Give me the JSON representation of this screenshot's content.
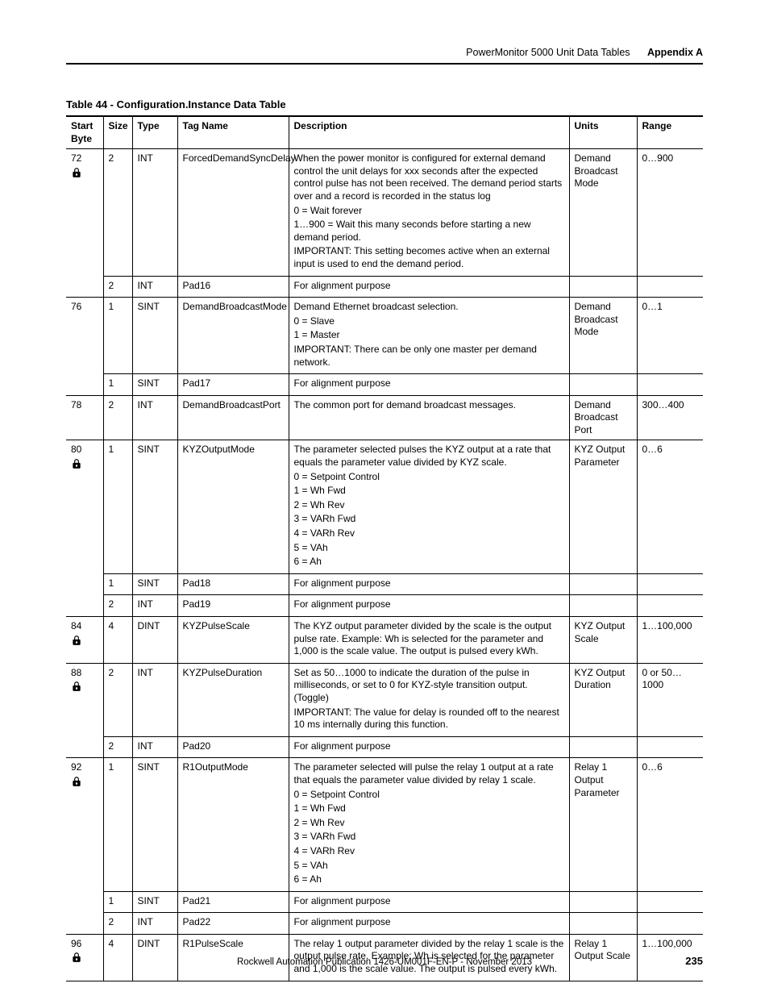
{
  "header": {
    "doc_section": "PowerMonitor 5000 Unit Data Tables",
    "appendix": "Appendix A"
  },
  "caption": "Table 44 - Configuration.Instance Data Table",
  "columns": [
    "Start Byte",
    "Size",
    "Type",
    "Tag Name",
    "Description",
    "Units",
    "Range"
  ],
  "rows": [
    {
      "start": "72",
      "lock": true,
      "size": "2",
      "type": "INT",
      "tag": "ForcedDemandSyncDelay",
      "desc": [
        "When the power monitor is configured for external demand control the unit delays for xxx seconds after the expected control pulse has not been received. The demand period starts over and a record is recorded in the status log",
        "0 = Wait forever",
        "1…900 = Wait this many seconds before starting a new demand period.",
        "IMPORTANT: This setting becomes active when an external input is used to end the demand period."
      ],
      "units": "Demand Broadcast Mode",
      "range": "0…900",
      "rowspan_start": true
    },
    {
      "start": "",
      "lock": false,
      "size": "2",
      "type": "INT",
      "tag": "Pad16",
      "desc": [
        "For alignment purpose"
      ],
      "units": "",
      "range": "",
      "rowspan_cont": true
    },
    {
      "start": "76",
      "lock": false,
      "size": "1",
      "type": "SINT",
      "tag": "DemandBroadcastMode",
      "desc": [
        "Demand Ethernet broadcast selection.",
        "0 = Slave",
        "1 = Master",
        "IMPORTANT:  There can be only one master per demand network."
      ],
      "units": "Demand Broadcast Mode",
      "range": "0…1",
      "rowspan_start": true
    },
    {
      "start": "",
      "lock": false,
      "size": "1",
      "type": "SINT",
      "tag": "Pad17",
      "desc": [
        "For alignment purpose"
      ],
      "units": "",
      "range": "",
      "rowspan_cont": true
    },
    {
      "start": "78",
      "lock": false,
      "size": "2",
      "type": "INT",
      "tag": "DemandBroadcastPort",
      "desc": [
        "The common port for demand broadcast messages."
      ],
      "units": "Demand Broadcast Port",
      "range": "300…400"
    },
    {
      "start": "80",
      "lock": true,
      "size": "1",
      "type": "SINT",
      "tag": "KYZOutputMode",
      "desc": [
        "The parameter selected pulses the KYZ output at a rate that equals the parameter value divided by KYZ scale.",
        "0 = Setpoint Control",
        "1 = Wh Fwd",
        "2 = Wh Rev",
        "3 = VARh Fwd",
        "4 = VARh Rev",
        "5 = VAh",
        "6 = Ah"
      ],
      "units": "KYZ Output Parameter",
      "range": "0…6",
      "rowspan_start": true
    },
    {
      "start": "",
      "lock": false,
      "size": "1",
      "type": "SINT",
      "tag": "Pad18",
      "desc": [
        "For alignment purpose"
      ],
      "units": "",
      "range": "",
      "rowspan_cont": true,
      "rowspan_mid": true
    },
    {
      "start": "",
      "lock": false,
      "size": "2",
      "type": "INT",
      "tag": "Pad19",
      "desc": [
        "For alignment purpose"
      ],
      "units": "",
      "range": "",
      "rowspan_cont": true
    },
    {
      "start": "84",
      "lock": true,
      "size": "4",
      "type": "DINT",
      "tag": "KYZPulseScale",
      "desc": [
        "The KYZ output parameter divided by the scale is the output pulse rate.  Example:  Wh is selected for the parameter and 1,000 is the scale value.  The output is pulsed every kWh."
      ],
      "units": "KYZ Output Scale",
      "range": "1…100,000"
    },
    {
      "start": "88",
      "lock": true,
      "size": "2",
      "type": "INT",
      "tag": "KYZPulseDuration",
      "desc": [
        "Set as 50…1000 to indicate the duration of the pulse in milliseconds, or set to 0 for KYZ-style transition output. (Toggle)",
        "IMPORTANT: The value for delay is rounded off to the nearest 10 ms internally during this function."
      ],
      "units": "KYZ Output Duration",
      "range": "0 or 50…1000",
      "rowspan_start": true
    },
    {
      "start": "",
      "lock": false,
      "size": "2",
      "type": "INT",
      "tag": "Pad20",
      "desc": [
        "For alignment purpose"
      ],
      "units": "",
      "range": "",
      "rowspan_cont": true
    },
    {
      "start": "92",
      "lock": true,
      "size": "1",
      "type": "SINT",
      "tag": "R1OutputMode",
      "desc": [
        "The parameter selected will pulse the relay 1 output at a rate that equals the parameter value divided by relay 1 scale.",
        "0 = Setpoint Control",
        "1 = Wh Fwd",
        "2 = Wh Rev",
        "3 = VARh Fwd",
        "4 = VARh Rev",
        "5 = VAh",
        "6 = Ah"
      ],
      "units": "Relay 1 Output Parameter",
      "range": "0…6",
      "rowspan_start": true
    },
    {
      "start": "",
      "lock": false,
      "size": "1",
      "type": "SINT",
      "tag": "Pad21",
      "desc": [
        "For alignment purpose"
      ],
      "units": "",
      "range": "",
      "rowspan_cont": true,
      "rowspan_mid": true
    },
    {
      "start": "",
      "lock": false,
      "size": "2",
      "type": "INT",
      "tag": "Pad22",
      "desc": [
        "For alignment purpose"
      ],
      "units": "",
      "range": "",
      "rowspan_cont": true
    },
    {
      "start": "96",
      "lock": true,
      "size": "4",
      "type": "DINT",
      "tag": "R1PulseScale",
      "desc": [
        "The relay 1 output parameter divided by the relay 1 scale is the output pulse rate. Example: Wh is selected for the parameter and 1,000 is the scale value. The output is pulsed every kWh."
      ],
      "units": "Relay 1 Output Scale",
      "range": "1…100,000"
    }
  ],
  "footer": {
    "pub": "Rockwell Automation Publication 1426-UM001F-EN-P - November 2013",
    "page": "235"
  },
  "style": {
    "text_color": "#000000",
    "bg_color": "#ffffff",
    "border_color": "#000000",
    "font_family": "Myriad Pro, Segoe UI, Arial, sans-serif",
    "caption_fontsize": 13,
    "header_fontsize": 12.5,
    "body_fontsize": 12,
    "footer_fontsize": 11.5
  }
}
